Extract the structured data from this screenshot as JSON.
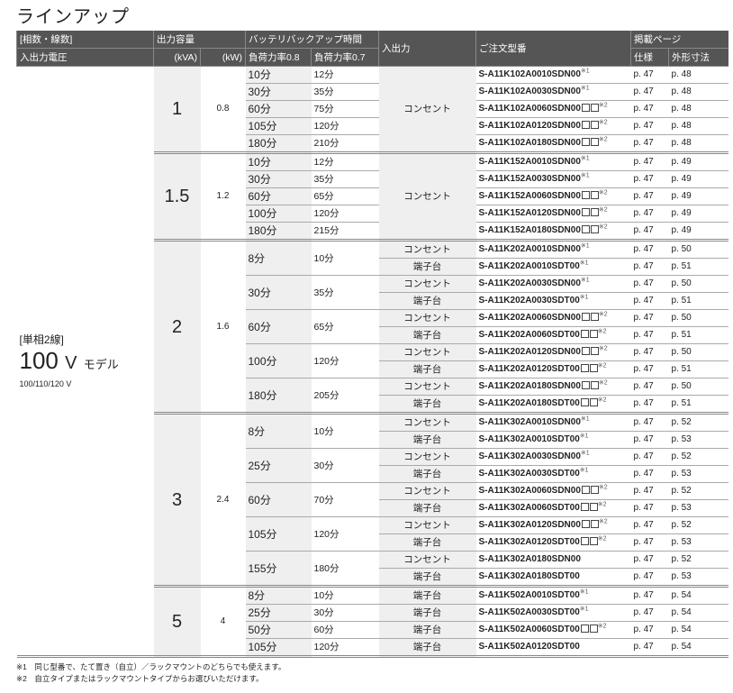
{
  "title": "ラインアップ",
  "header": {
    "phase": "[相数・線数]",
    "voltage": "入出力電圧",
    "capacity": "出力容量",
    "kva": "(kVA)",
    "kw": "(kW)",
    "backup": "バッテリバックアップ時間",
    "load08": "負荷力率0.8",
    "load07": "負荷力率0.7",
    "io": "入出力",
    "model": "ご注文型番",
    "pages": "掲載ページ",
    "spec": "仕様",
    "dim": "外形寸法"
  },
  "left": {
    "phase": "[単相2線]",
    "volt": "100",
    "unit": "V",
    "model": "モデル",
    "range": "100/110/120 V"
  },
  "groups": [
    {
      "kva": "1",
      "kw": "0.8",
      "io_merged": "コンセント",
      "backups": [
        {
          "t08": "10分",
          "t07": "12分",
          "outputs": [
            {
              "model": "S-A11K102A0010SDN00",
              "boxes": false,
              "note": "※1",
              "spec": "p. 47",
              "dim": "p. 48"
            }
          ]
        },
        {
          "t08": "30分",
          "t07": "35分",
          "outputs": [
            {
              "model": "S-A11K102A0030SDN00",
              "boxes": false,
              "note": "※1",
              "spec": "p. 47",
              "dim": "p. 48"
            }
          ]
        },
        {
          "t08": "60分",
          "t07": "75分",
          "outputs": [
            {
              "model": "S-A11K102A0060SDN00",
              "boxes": true,
              "note": "※2",
              "spec": "p. 47",
              "dim": "p. 48"
            }
          ]
        },
        {
          "t08": "105分",
          "t07": "120分",
          "outputs": [
            {
              "model": "S-A11K102A0120SDN00",
              "boxes": true,
              "note": "※2",
              "spec": "p. 47",
              "dim": "p. 48"
            }
          ]
        },
        {
          "t08": "180分",
          "t07": "210分",
          "outputs": [
            {
              "model": "S-A11K102A0180SDN00",
              "boxes": true,
              "note": "※2",
              "spec": "p. 47",
              "dim": "p. 48"
            }
          ]
        }
      ]
    },
    {
      "kva": "1.5",
      "kw": "1.2",
      "io_merged": "コンセント",
      "backups": [
        {
          "t08": "10分",
          "t07": "12分",
          "outputs": [
            {
              "model": "S-A11K152A0010SDN00",
              "boxes": false,
              "note": "※1",
              "spec": "p. 47",
              "dim": "p. 49"
            }
          ]
        },
        {
          "t08": "30分",
          "t07": "35分",
          "outputs": [
            {
              "model": "S-A11K152A0030SDN00",
              "boxes": false,
              "note": "※1",
              "spec": "p. 47",
              "dim": "p. 49"
            }
          ]
        },
        {
          "t08": "60分",
          "t07": "65分",
          "outputs": [
            {
              "model": "S-A11K152A0060SDN00",
              "boxes": true,
              "note": "※2",
              "spec": "p. 47",
              "dim": "p. 49"
            }
          ]
        },
        {
          "t08": "100分",
          "t07": "120分",
          "outputs": [
            {
              "model": "S-A11K152A0120SDN00",
              "boxes": true,
              "note": "※2",
              "spec": "p. 47",
              "dim": "p. 49"
            }
          ]
        },
        {
          "t08": "180分",
          "t07": "215分",
          "outputs": [
            {
              "model": "S-A11K152A0180SDN00",
              "boxes": true,
              "note": "※2",
              "spec": "p. 47",
              "dim": "p. 49"
            }
          ]
        }
      ]
    },
    {
      "kva": "2",
      "kw": "1.6",
      "backups": [
        {
          "t08": "8分",
          "t07": "10分",
          "outputs": [
            {
              "io": "コンセント",
              "model": "S-A11K202A0010SDN00",
              "boxes": false,
              "note": "※1",
              "spec": "p. 47",
              "dim": "p. 50"
            },
            {
              "io": "端子台",
              "model": "S-A11K202A0010SDT00",
              "boxes": false,
              "note": "※1",
              "spec": "p. 47",
              "dim": "p. 51"
            }
          ]
        },
        {
          "t08": "30分",
          "t07": "35分",
          "outputs": [
            {
              "io": "コンセント",
              "model": "S-A11K202A0030SDN00",
              "boxes": false,
              "note": "※1",
              "spec": "p. 47",
              "dim": "p. 50"
            },
            {
              "io": "端子台",
              "model": "S-A11K202A0030SDT00",
              "boxes": false,
              "note": "※1",
              "spec": "p. 47",
              "dim": "p. 51"
            }
          ]
        },
        {
          "t08": "60分",
          "t07": "65分",
          "outputs": [
            {
              "io": "コンセント",
              "model": "S-A11K202A0060SDN00",
              "boxes": true,
              "note": "※2",
              "spec": "p. 47",
              "dim": "p. 50"
            },
            {
              "io": "端子台",
              "model": "S-A11K202A0060SDT00",
              "boxes": true,
              "note": "※2",
              "spec": "p. 47",
              "dim": "p. 51"
            }
          ]
        },
        {
          "t08": "100分",
          "t07": "120分",
          "outputs": [
            {
              "io": "コンセント",
              "model": "S-A11K202A0120SDN00",
              "boxes": true,
              "note": "※2",
              "spec": "p. 47",
              "dim": "p. 50"
            },
            {
              "io": "端子台",
              "model": "S-A11K202A0120SDT00",
              "boxes": true,
              "note": "※2",
              "spec": "p. 47",
              "dim": "p. 51"
            }
          ]
        },
        {
          "t08": "180分",
          "t07": "205分",
          "outputs": [
            {
              "io": "コンセント",
              "model": "S-A11K202A0180SDN00",
              "boxes": true,
              "note": "※2",
              "spec": "p. 47",
              "dim": "p. 50"
            },
            {
              "io": "端子台",
              "model": "S-A11K202A0180SDT00",
              "boxes": true,
              "note": "※2",
              "spec": "p. 47",
              "dim": "p. 51"
            }
          ]
        }
      ]
    },
    {
      "kva": "3",
      "kw": "2.4",
      "backups": [
        {
          "t08": "8分",
          "t07": "10分",
          "outputs": [
            {
              "io": "コンセント",
              "model": "S-A11K302A0010SDN00",
              "boxes": false,
              "note": "※1",
              "spec": "p. 47",
              "dim": "p. 52"
            },
            {
              "io": "端子台",
              "model": "S-A11K302A0010SDT00",
              "boxes": false,
              "note": "※1",
              "spec": "p. 47",
              "dim": "p. 53"
            }
          ]
        },
        {
          "t08": "25分",
          "t07": "30分",
          "outputs": [
            {
              "io": "コンセント",
              "model": "S-A11K302A0030SDN00",
              "boxes": false,
              "note": "※1",
              "spec": "p. 47",
              "dim": "p. 52"
            },
            {
              "io": "端子台",
              "model": "S-A11K302A0030SDT00",
              "boxes": false,
              "note": "※1",
              "spec": "p. 47",
              "dim": "p. 53"
            }
          ]
        },
        {
          "t08": "60分",
          "t07": "70分",
          "outputs": [
            {
              "io": "コンセント",
              "model": "S-A11K302A0060SDN00",
              "boxes": true,
              "note": "※2",
              "spec": "p. 47",
              "dim": "p. 52"
            },
            {
              "io": "端子台",
              "model": "S-A11K302A0060SDT00",
              "boxes": true,
              "note": "※2",
              "spec": "p. 47",
              "dim": "p. 53"
            }
          ]
        },
        {
          "t08": "105分",
          "t07": "120分",
          "outputs": [
            {
              "io": "コンセント",
              "model": "S-A11K302A0120SDN00",
              "boxes": true,
              "note": "※2",
              "spec": "p. 47",
              "dim": "p. 52"
            },
            {
              "io": "端子台",
              "model": "S-A11K302A0120SDT00",
              "boxes": true,
              "note": "※2",
              "spec": "p. 47",
              "dim": "p. 53"
            }
          ]
        },
        {
          "t08": "155分",
          "t07": "180分",
          "outputs": [
            {
              "io": "コンセント",
              "model": "S-A11K302A0180SDN00",
              "boxes": false,
              "note": "",
              "spec": "p. 47",
              "dim": "p. 52"
            },
            {
              "io": "端子台",
              "model": "S-A11K302A0180SDT00",
              "boxes": false,
              "note": "",
              "spec": "p. 47",
              "dim": "p. 53"
            }
          ]
        }
      ]
    },
    {
      "kva": "5",
      "kw": "4",
      "backups": [
        {
          "t08": "8分",
          "t07": "10分",
          "outputs": [
            {
              "io": "端子台",
              "model": "S-A11K502A0010SDT00",
              "boxes": false,
              "note": "※1",
              "spec": "p. 47",
              "dim": "p. 54"
            }
          ]
        },
        {
          "t08": "25分",
          "t07": "30分",
          "outputs": [
            {
              "io": "端子台",
              "model": "S-A11K502A0030SDT00",
              "boxes": false,
              "note": "※1",
              "spec": "p. 47",
              "dim": "p. 54"
            }
          ]
        },
        {
          "t08": "50分",
          "t07": "60分",
          "outputs": [
            {
              "io": "端子台",
              "model": "S-A11K502A0060SDT00",
              "boxes": true,
              "note": "※2",
              "spec": "p. 47",
              "dim": "p. 54"
            }
          ]
        },
        {
          "t08": "105分",
          "t07": "120分",
          "outputs": [
            {
              "io": "端子台",
              "model": "S-A11K502A0120SDT00",
              "boxes": false,
              "note": "",
              "spec": "p. 47",
              "dim": "p. 54"
            }
          ]
        }
      ]
    }
  ],
  "notes": [
    "※1　同じ型番で、たて置き（自立）／ラックマウントのどちらでも使えます。",
    "※2　自立タイプまたはラックマウントタイプからお選びいただけます。"
  ]
}
